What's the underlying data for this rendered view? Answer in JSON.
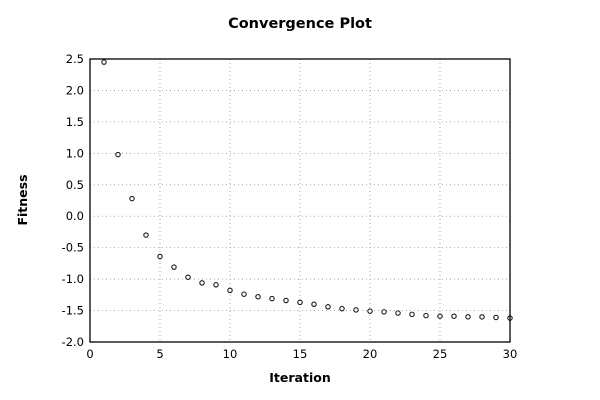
{
  "chart_data": {
    "type": "scatter",
    "title": "Convergence Plot",
    "xlabel": "Iteration",
    "ylabel": "Fitness",
    "xlim": [
      0,
      30
    ],
    "ylim": [
      -2.0,
      2.5
    ],
    "x_ticks": [
      0,
      5,
      10,
      15,
      20,
      25,
      30
    ],
    "y_ticks": [
      -2.0,
      -1.5,
      -1.0,
      -0.5,
      0.0,
      0.5,
      1.0,
      1.5,
      2.0,
      2.5
    ],
    "grid": "dotted",
    "legend": "none",
    "marker": "open-circle",
    "marker_color": "#1a1a1a",
    "grid_color": "#aaaaaa",
    "frame_color": "#000000",
    "background_color": "#ffffff",
    "series": [
      {
        "name": "fitness",
        "x": [
          1,
          2,
          3,
          4,
          5,
          6,
          7,
          8,
          9,
          10,
          11,
          12,
          13,
          14,
          15,
          16,
          17,
          18,
          19,
          20,
          21,
          22,
          23,
          24,
          25,
          26,
          27,
          28,
          29,
          30
        ],
        "y": [
          2.45,
          0.98,
          0.28,
          -0.3,
          -0.64,
          -0.81,
          -0.97,
          -1.06,
          -1.09,
          -1.18,
          -1.24,
          -1.28,
          -1.31,
          -1.34,
          -1.37,
          -1.4,
          -1.44,
          -1.47,
          -1.49,
          -1.51,
          -1.52,
          -1.54,
          -1.56,
          -1.58,
          -1.59,
          -1.59,
          -1.6,
          -1.6,
          -1.61,
          -1.62
        ]
      }
    ]
  }
}
